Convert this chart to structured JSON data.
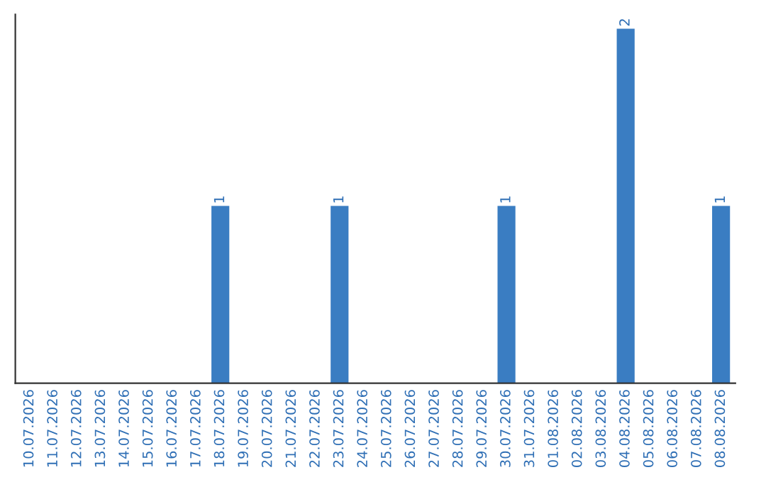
{
  "chart_data": {
    "type": "bar",
    "categories": [
      "10.07.2026",
      "11.07.2026",
      "12.07.2026",
      "13.07.2026",
      "14.07.2026",
      "15.07.2026",
      "16.07.2026",
      "17.07.2026",
      "18.07.2026",
      "19.07.2026",
      "20.07.2026",
      "21.07.2026",
      "22.07.2026",
      "23.07.2026",
      "24.07.2026",
      "25.07.2026",
      "26.07.2026",
      "27.07.2026",
      "28.07.2026",
      "29.07.2026",
      "30.07.2026",
      "31.07.2026",
      "01.08.2026",
      "02.08.2026",
      "03.08.2026",
      "04.08.2026",
      "05.08.2026",
      "06.08.2026",
      "07.08.2026",
      "08.08.2026"
    ],
    "values": [
      0,
      0,
      0,
      0,
      0,
      0,
      0,
      0,
      1,
      0,
      0,
      0,
      0,
      1,
      0,
      0,
      0,
      0,
      0,
      0,
      1,
      0,
      0,
      0,
      0,
      2,
      0,
      0,
      0,
      1
    ],
    "value_labels": [
      null,
      null,
      null,
      null,
      null,
      null,
      null,
      null,
      "1",
      null,
      null,
      null,
      null,
      "1",
      null,
      null,
      null,
      null,
      null,
      null,
      "1",
      null,
      null,
      null,
      null,
      "2",
      null,
      null,
      null,
      "1"
    ],
    "color": "#3a7dc2",
    "ylim": [
      0,
      2.08
    ],
    "tick_labels": "x",
    "grid": false,
    "legend": false
  }
}
